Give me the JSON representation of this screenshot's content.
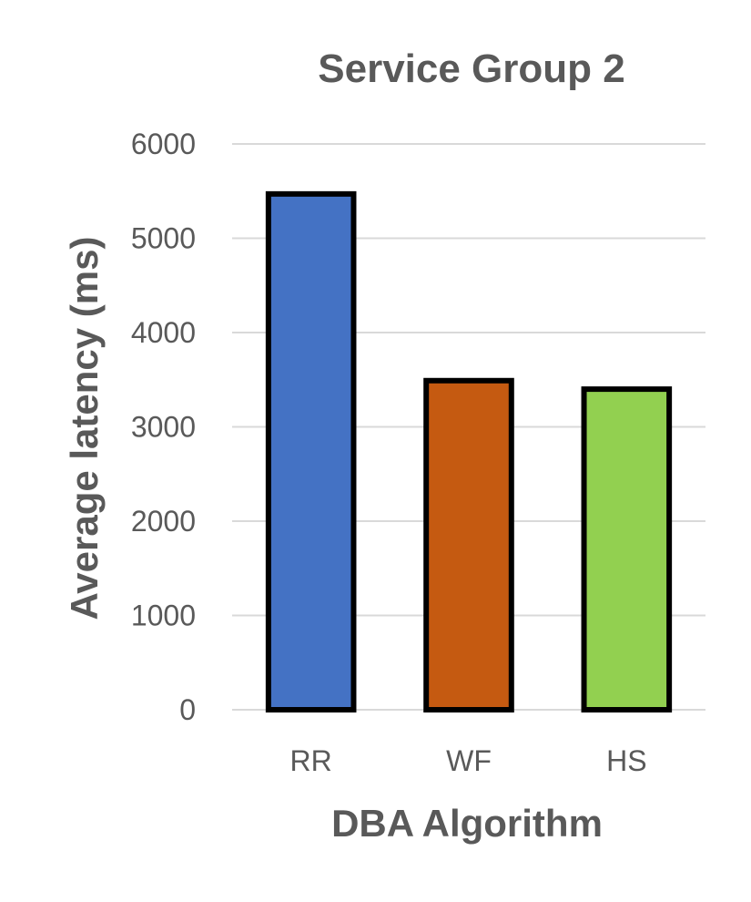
{
  "chart_data": {
    "type": "bar",
    "title": "Service Group 2",
    "xlabel": "DBA Algorithm",
    "ylabel": "Average latency (ms)",
    "categories": [
      "RR",
      "WF",
      "HS"
    ],
    "values": [
      5470,
      3490,
      3400
    ],
    "colors": [
      "#4472c4",
      "#c55a11",
      "#92d050"
    ],
    "ylim": [
      0,
      6000
    ],
    "yticks": [
      0,
      1000,
      2000,
      3000,
      4000,
      5000,
      6000
    ],
    "grid": true,
    "legend": "none"
  }
}
